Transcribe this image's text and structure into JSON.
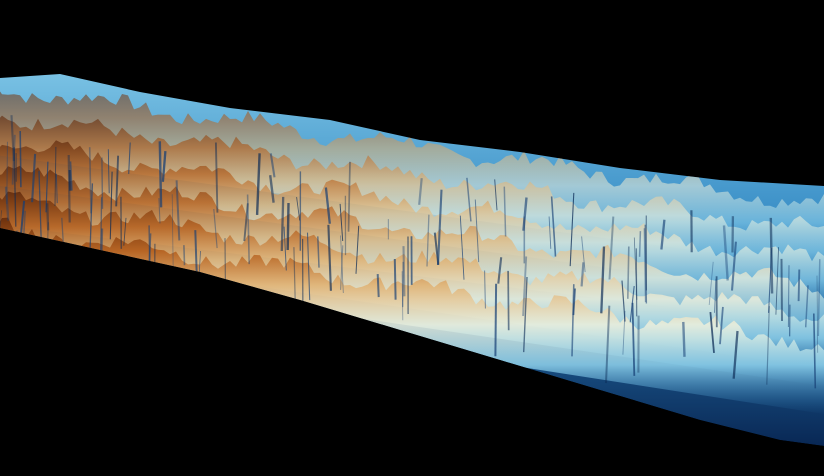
{
  "scene": {
    "background_color": "#000000",
    "subject": "terrain-heightmap",
    "palette": {
      "deep": "#0a2f6b",
      "low": "#1f6fb0",
      "mid": "#4aa8d8",
      "light": "#a9dff0",
      "pale": "#f0ead2",
      "ochre": "#d49a4a",
      "rust": "#a24a12",
      "dark_rust": "#5a2408"
    }
  }
}
